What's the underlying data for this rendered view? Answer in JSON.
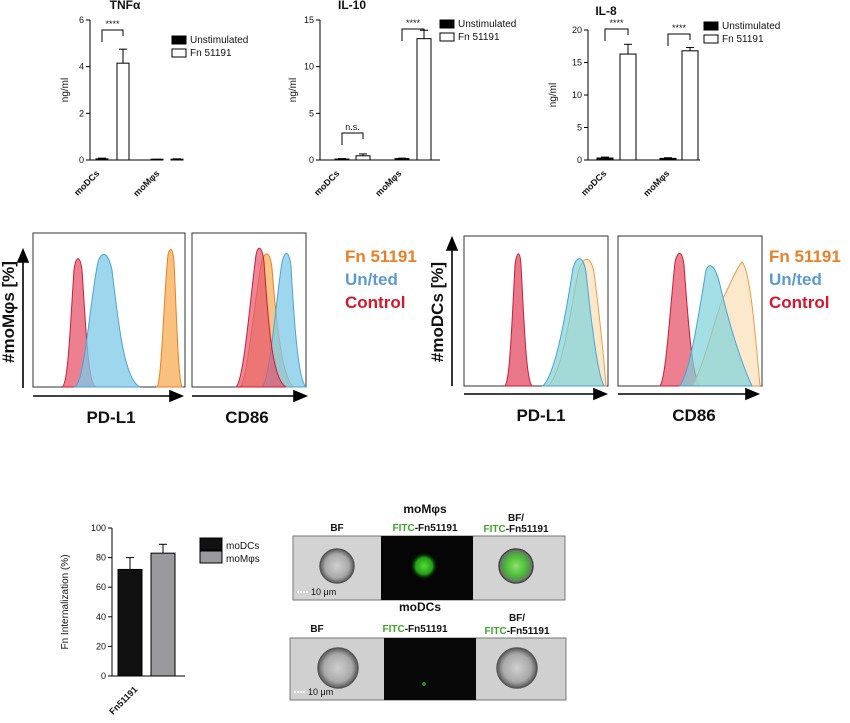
{
  "chart_data": [
    {
      "type": "bar",
      "title": "TNFα",
      "ylabel": "ng/ml",
      "categories": [
        "moDCs",
        "moMφs"
      ],
      "ylim": [
        0,
        6
      ],
      "yticks": [
        0,
        2,
        4,
        6
      ],
      "series": [
        {
          "name": "Unstimulated",
          "values": [
            0.05,
            0.02
          ],
          "errors": [
            0.03,
            0.01
          ],
          "color": "#000000"
        },
        {
          "name": "Fn 51191",
          "values": [
            4.15,
            0.03
          ],
          "errors": [
            0.6,
            0.02
          ],
          "color": "#ffffff"
        }
      ],
      "annotations": [
        "****"
      ]
    },
    {
      "type": "bar",
      "title": "IL-10",
      "ylabel": "ng/ml",
      "categories": [
        "moDCs",
        "moMφs"
      ],
      "ylim": [
        0,
        15
      ],
      "yticks": [
        0,
        5,
        10,
        15
      ],
      "series": [
        {
          "name": "Unstimulated",
          "values": [
            0.1,
            0.15
          ],
          "errors": [
            0.05,
            0.05
          ],
          "color": "#000000"
        },
        {
          "name": "Fn 51191",
          "values": [
            0.45,
            13.0
          ],
          "errors": [
            0.2,
            0.9
          ],
          "color": "#ffffff"
        }
      ],
      "annotations": [
        "n.s.",
        "****"
      ]
    },
    {
      "type": "bar",
      "title": "IL-8",
      "ylabel": "ng/ml",
      "categories": [
        "moDCs",
        "moMφs"
      ],
      "ylim": [
        0,
        20
      ],
      "yticks": [
        0,
        5,
        10,
        15,
        20
      ],
      "series": [
        {
          "name": "Unstimulated",
          "values": [
            0.3,
            0.25
          ],
          "errors": [
            0.15,
            0.1
          ],
          "color": "#000000"
        },
        {
          "name": "Fn 51191",
          "values": [
            16.3,
            16.8
          ],
          "errors": [
            1.5,
            0.5
          ],
          "color": "#ffffff"
        }
      ],
      "annotations": [
        "****",
        "****"
      ]
    },
    {
      "type": "bar",
      "ylabel": "Fn Internalization (%)",
      "categories": [
        "Fn51191"
      ],
      "ylim": [
        0,
        100
      ],
      "yticks": [
        0,
        20,
        40,
        60,
        80,
        100
      ],
      "series": [
        {
          "name": "moDCs",
          "values": [
            72
          ],
          "errors": [
            8
          ],
          "color": "#111111"
        },
        {
          "name": "moMφs",
          "values": [
            83
          ],
          "errors": [
            6
          ],
          "color": "#9a9a9c"
        }
      ]
    }
  ],
  "histograms": {
    "ylabel_left": "#moMφs [%]",
    "ylabel_right": "#moDCs [%]",
    "markers": [
      "PD-L1",
      "CD86"
    ],
    "legend": [
      {
        "label": "Fn 51191",
        "color": "#ee7d24"
      },
      {
        "label": "Un/ted",
        "color": "#5b9bd5"
      },
      {
        "label": "Control",
        "color": "#d9152b"
      }
    ]
  },
  "imaging": {
    "panels": [
      {
        "title": "moMφs",
        "labels": [
          "BF",
          "FITC",
          "-Fn51191",
          "BF/",
          "FITC",
          "-Fn51191"
        ],
        "scale": "10 μm"
      },
      {
        "title": "moDCs",
        "labels": [
          "BF",
          "FITC",
          "-Fn51191",
          "BF/",
          "FITC",
          "-Fn51191"
        ],
        "scale": "10 μm"
      }
    ],
    "colors": {
      "fitc": "#3fa52a"
    }
  }
}
